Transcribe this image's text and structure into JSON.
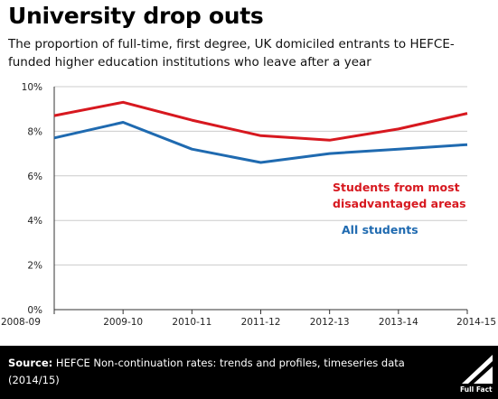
{
  "header": {
    "title": "University drop outs",
    "subtitle": "The proportion of full-time, first degree, UK domiciled entrants to HEFCE-funded higher education institutions who leave after a year"
  },
  "chart_data": {
    "type": "line",
    "categories": [
      "2008-09",
      "2009-10",
      "2010-11",
      "2011-12",
      "2012-13",
      "2013-14",
      "2014-15"
    ],
    "ylim": [
      0,
      10
    ],
    "yticks": [
      "0%",
      "2%",
      "4%",
      "6%",
      "8%",
      "10%"
    ],
    "unit": "%",
    "grid": "horizontal",
    "series": [
      {
        "name": "Students from most disadvantaged areas",
        "label_lines": [
          "Students from most",
          "disadvantaged areas"
        ],
        "color": "#d7181f",
        "values": [
          8.7,
          9.3,
          8.5,
          7.8,
          7.6,
          8.1,
          8.8
        ]
      },
      {
        "name": "All students",
        "label_lines": [
          "All students"
        ],
        "color": "#1f6ab0",
        "values": [
          7.7,
          8.4,
          7.2,
          6.6,
          7.0,
          7.2,
          7.4
        ]
      }
    ]
  },
  "footer": {
    "source_label": "Source:",
    "source_text": " HEFCE Non-continuation rates: trends and profiles, timeseries data (2014/15)",
    "logo_text": "Full Fact"
  },
  "colors": {
    "footer_background": "#000000",
    "gridline": "#cccccc",
    "axis": "#333333"
  }
}
